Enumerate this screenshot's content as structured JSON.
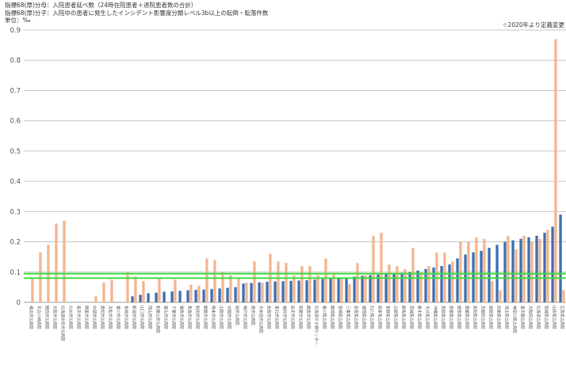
{
  "notes": [
    "指標68(厚)分母：入院患者延べ数（24時在院患者＋退院患者数の合計）",
    "指標68(厚)分子：入院中の患者に発生したインシデント影響度分類レベル3b以上の転倒・転落件数",
    "単位：‰"
  ],
  "corner_note": "☆2020年より定義変更",
  "chart_data": {
    "type": "bar",
    "title": "",
    "xlabel": "",
    "ylabel": "",
    "ylim": [
      0,
      0.9
    ],
    "yticks": [
      "0",
      "0.1",
      "0.2",
      "0.3",
      "0.4",
      "0.5",
      "0.6",
      "0.7",
      "0.8",
      "0.9"
    ],
    "grid": true,
    "reference_lines": [
      0.08,
      0.095
    ],
    "colors": {
      "blue": "#3d6fb0",
      "orange": "#f3b58f",
      "reference": "#3ddc3d",
      "grid": "#c6c6c6"
    },
    "categories": [
      "横浜労災病院",
      "市立川崎病院",
      "関西労災病院",
      "大阪労災病院",
      "北海道中央労災病院",
      "九州労災病院",
      "東京労災病院",
      "関東労災病院",
      "中部労災病院",
      "愛知労災病院",
      "浜松労災病院",
      "香川労災病院",
      "長崎労災病院",
      "新潟労災病院",
      "山口労災病院",
      "岡山労災病院",
      "和歌山労災病院",
      "富山労災病院",
      "千葉労災病院",
      "福島労災病院",
      "青森労災病院",
      "秋田労災病院",
      "釧路労災病院",
      "熊本労災病院",
      "山陰労災病院",
      "中国労災病院",
      "旭労災病院",
      "神戸労災病院",
      "燕労災病院",
      "大牟田労災病院",
      "佐賀労災病院",
      "東北労災病院",
      "福井労災病院",
      "岩手労災病院",
      "筑豊労災病院",
      "鹿島労災病院",
      "北海道せき損センター",
      "香川県立病院",
      "静岡県立病院",
      "宮崎県立病院",
      "三重県立病院",
      "奈良県立病院",
      "福岡県立病院",
      "石川県立病院",
      "岐阜県立病院",
      "長野県立病院",
      "山梨県立病院",
      "群馬県立病院",
      "茨城県立病院",
      "栃木県立病院",
      "大分県立病院",
      "沖縄県立病院",
      "鳥取県立病院",
      "島根県立病院",
      "徳島県立病院",
      "愛媛県立病院",
      "高知県立病院",
      "京都府立病院",
      "滋賀県立病院",
      "兵庫県立病院",
      "埼玉県立病院",
      "神奈川県立病院",
      "東京都立病院",
      "大阪府立病院",
      "北海道立病院",
      "宮城県立病院",
      "山形県立病院",
      "広島県立病院"
    ],
    "series": [
      {
        "values": [
          0,
          0,
          0,
          0,
          0,
          0,
          0,
          0,
          0,
          0,
          0,
          0,
          0,
          0.02,
          0.025,
          0.03,
          0.032,
          0.035,
          0.036,
          0.038,
          0.04,
          0.041,
          0.042,
          0.044,
          0.046,
          0.048,
          0.05,
          0.062,
          0.064,
          0.066,
          0.068,
          0.069,
          0.07,
          0.071,
          0.072,
          0.073,
          0.075,
          0.077,
          0.078,
          0.08,
          0.081,
          0.085,
          0.088,
          0.09,
          0.092,
          0.094,
          0.096,
          0.098,
          0.1,
          0.105,
          0.11,
          0.115,
          0.12,
          0.125,
          0.145,
          0.158,
          0.165,
          0.17,
          0.18,
          0.19,
          0.2,
          0.205,
          0.21,
          0.215,
          0.22,
          0.23,
          0.25,
          0.29
        ]
      },
      {
        "values": [
          0.08,
          0.165,
          0.19,
          0.26,
          0.27,
          0,
          0,
          0,
          0.02,
          0.065,
          0.075,
          0,
          0.1,
          0.085,
          0.07,
          0,
          0.08,
          0,
          0.075,
          0,
          0.058,
          0.055,
          0.145,
          0.14,
          0.1,
          0.09,
          0.08,
          0.065,
          0.135,
          0.065,
          0.16,
          0.135,
          0.13,
          0.09,
          0.12,
          0.12,
          0.09,
          0.145,
          0.095,
          0.08,
          0.06,
          0.13,
          0.09,
          0.22,
          0.23,
          0.125,
          0.12,
          0.11,
          0.18,
          0.1,
          0.12,
          0.165,
          0.165,
          0.135,
          0.2,
          0.2,
          0.215,
          0.21,
          0.07,
          0.04,
          0.22,
          0.175,
          0.22,
          0.2,
          0.21,
          0.24,
          0.87,
          0.04
        ]
      }
    ]
  }
}
